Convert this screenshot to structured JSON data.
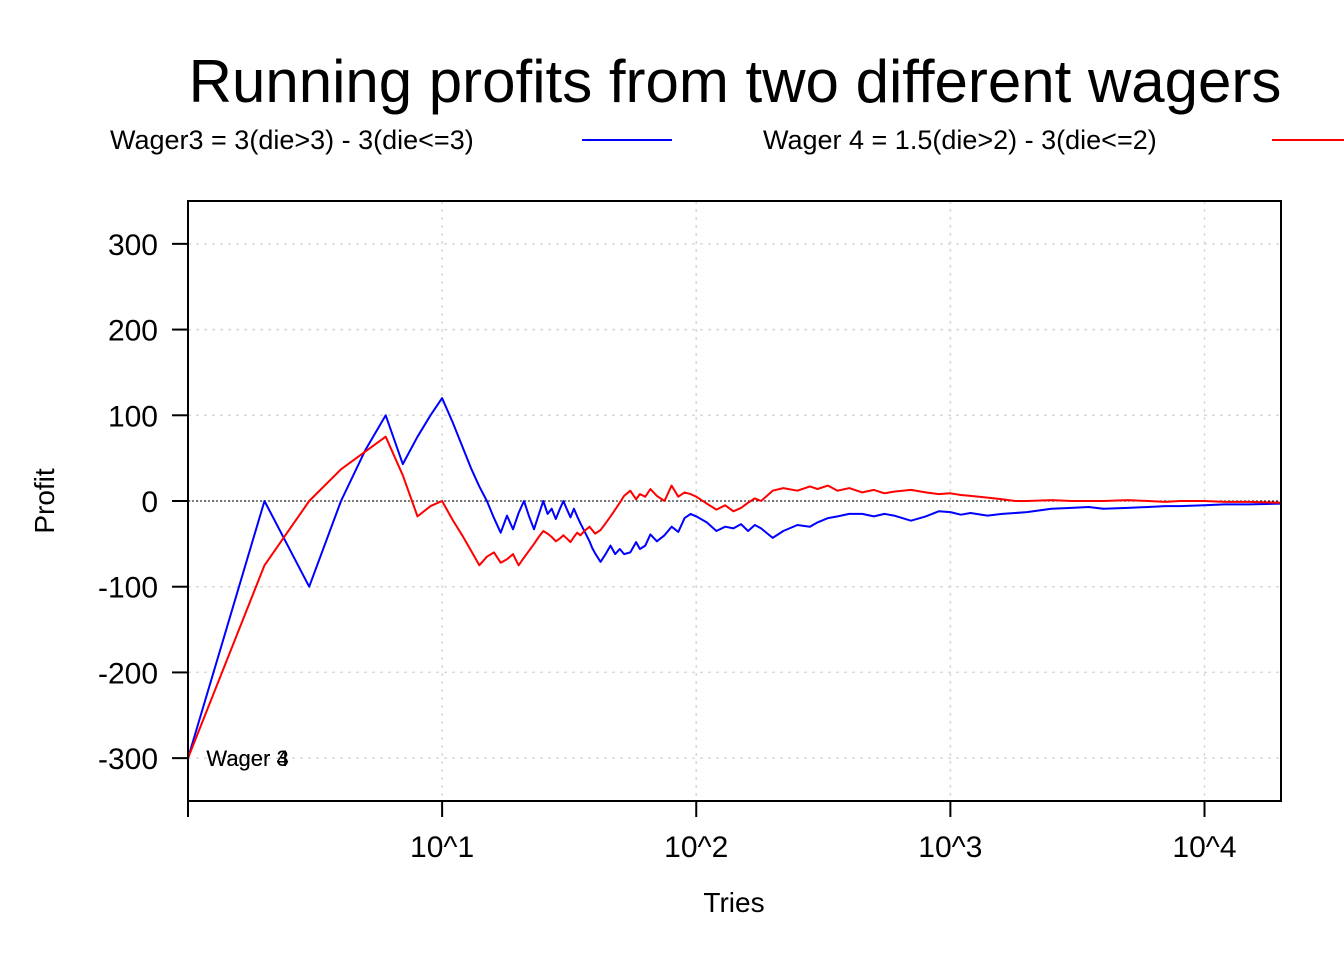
{
  "chart_data": {
    "type": "line",
    "title": "Running profits from two different wagers",
    "xlabel": "Tries",
    "ylabel": "Profit",
    "x_scale": "log10",
    "xlim": [
      1,
      20000
    ],
    "ylim": [
      -350,
      350
    ],
    "grid": true,
    "legend_position": "top",
    "reference_line": 0,
    "x_ticks": [
      {
        "value": 10,
        "label": "10^1"
      },
      {
        "value": 100,
        "label": "10^2"
      },
      {
        "value": 1000,
        "label": "10^3"
      },
      {
        "value": 10000,
        "label": "10^4"
      }
    ],
    "y_ticks": [
      {
        "value": 300,
        "label": "300"
      },
      {
        "value": 200,
        "label": "200"
      },
      {
        "value": 100,
        "label": "100"
      },
      {
        "value": 0,
        "label": "0"
      },
      {
        "value": -100,
        "label": "-100"
      },
      {
        "value": -200,
        "label": "-200"
      },
      {
        "value": -300,
        "label": "-300"
      }
    ],
    "annotations": [
      {
        "text": "Wager 3",
        "x": 1.05,
        "y": -300
      },
      {
        "text": "Wager 4",
        "x": 1.05,
        "y": -300
      }
    ],
    "series": [
      {
        "name": "Wager3 = 3(die>3) - 3(die<=3)",
        "color": "#0000ff",
        "x": [
          1,
          2,
          3,
          4,
          5,
          6,
          7,
          8,
          9,
          10,
          11,
          12,
          13,
          14,
          15,
          16,
          17,
          18,
          19,
          20,
          21,
          22,
          23,
          24,
          25,
          26,
          27,
          28,
          29,
          30,
          31,
          32,
          33,
          34,
          35,
          36,
          37,
          38,
          39,
          40,
          42,
          44,
          46,
          48,
          50,
          52,
          55,
          58,
          60,
          63,
          66,
          70,
          75,
          80,
          85,
          90,
          95,
          100,
          110,
          120,
          130,
          140,
          150,
          160,
          170,
          180,
          200,
          220,
          250,
          280,
          300,
          330,
          360,
          400,
          450,
          500,
          550,
          600,
          700,
          800,
          900,
          1000,
          1100,
          1200,
          1400,
          1600,
          1800,
          2000,
          2500,
          3000,
          3500,
          4000,
          5000,
          6000,
          7000,
          8000,
          10000,
          12000,
          15000,
          20000
        ],
        "y": [
          -300,
          0,
          -100,
          0,
          60,
          100,
          43,
          75,
          100,
          120,
          92,
          64,
          38,
          17,
          0,
          -20,
          -37,
          -17,
          -33,
          -14,
          0,
          -18,
          -33,
          -16,
          0,
          -15,
          -9,
          -21,
          -10,
          0,
          -10,
          -19,
          -9,
          -18,
          -26,
          -33,
          -40,
          -47,
          -55,
          -61,
          -71,
          -62,
          -52,
          -62,
          -56,
          -62,
          -60,
          -48,
          -56,
          -52,
          -39,
          -47,
          -40,
          -30,
          -36,
          -20,
          -15,
          -18,
          -25,
          -35,
          -30,
          -32,
          -27,
          -35,
          -28,
          -32,
          -43,
          -35,
          -28,
          -30,
          -25,
          -20,
          -18,
          -15,
          -15,
          -18,
          -15,
          -17,
          -23,
          -18,
          -12,
          -13,
          -16,
          -14,
          -17,
          -15,
          -14,
          -13,
          -9,
          -8,
          -7,
          -9,
          -8,
          -7,
          -6,
          -6,
          -5,
          -4,
          -4,
          -3
        ]
      },
      {
        "name": "Wager 4 = 1.5(die>2) - 3(die<=2)",
        "color": "#ff0000",
        "x": [
          1,
          2,
          3,
          4,
          5,
          6,
          7,
          8,
          9,
          10,
          11,
          12,
          13,
          14,
          15,
          16,
          17,
          18,
          19,
          20,
          21,
          22,
          23,
          24,
          25,
          26,
          27,
          28,
          29,
          30,
          31,
          32,
          33,
          34,
          35,
          36,
          37,
          38,
          39,
          40,
          42,
          44,
          46,
          48,
          50,
          52,
          55,
          58,
          60,
          63,
          66,
          70,
          75,
          80,
          85,
          90,
          95,
          100,
          110,
          120,
          130,
          140,
          150,
          160,
          170,
          180,
          200,
          220,
          250,
          280,
          300,
          330,
          360,
          400,
          450,
          500,
          550,
          600,
          700,
          800,
          900,
          1000,
          1100,
          1200,
          1400,
          1600,
          1800,
          2000,
          2500,
          3000,
          3500,
          4000,
          5000,
          6000,
          7000,
          8000,
          10000,
          12000,
          15000,
          20000
        ],
        "y": [
          -300,
          -75,
          0,
          37,
          58,
          75,
          30,
          -18,
          -6,
          0,
          -22,
          -40,
          -58,
          -75,
          -65,
          -60,
          -72,
          -68,
          -62,
          -75,
          -66,
          -58,
          -50,
          -42,
          -35,
          -38,
          -42,
          -47,
          -44,
          -40,
          -44,
          -48,
          -42,
          -37,
          -40,
          -36,
          -33,
          -30,
          -34,
          -38,
          -34,
          -26,
          -18,
          -10,
          -2,
          6,
          12,
          2,
          8,
          5,
          14,
          6,
          0,
          18,
          5,
          10,
          8,
          5,
          -3,
          -10,
          -5,
          -12,
          -8,
          -2,
          3,
          0,
          12,
          15,
          12,
          17,
          14,
          18,
          12,
          15,
          10,
          13,
          9,
          11,
          13,
          10,
          8,
          9,
          7,
          6,
          4,
          2,
          0,
          0,
          1,
          0,
          0,
          0,
          1,
          0,
          -1,
          0,
          0,
          -1,
          -1,
          -2
        ]
      }
    ]
  }
}
